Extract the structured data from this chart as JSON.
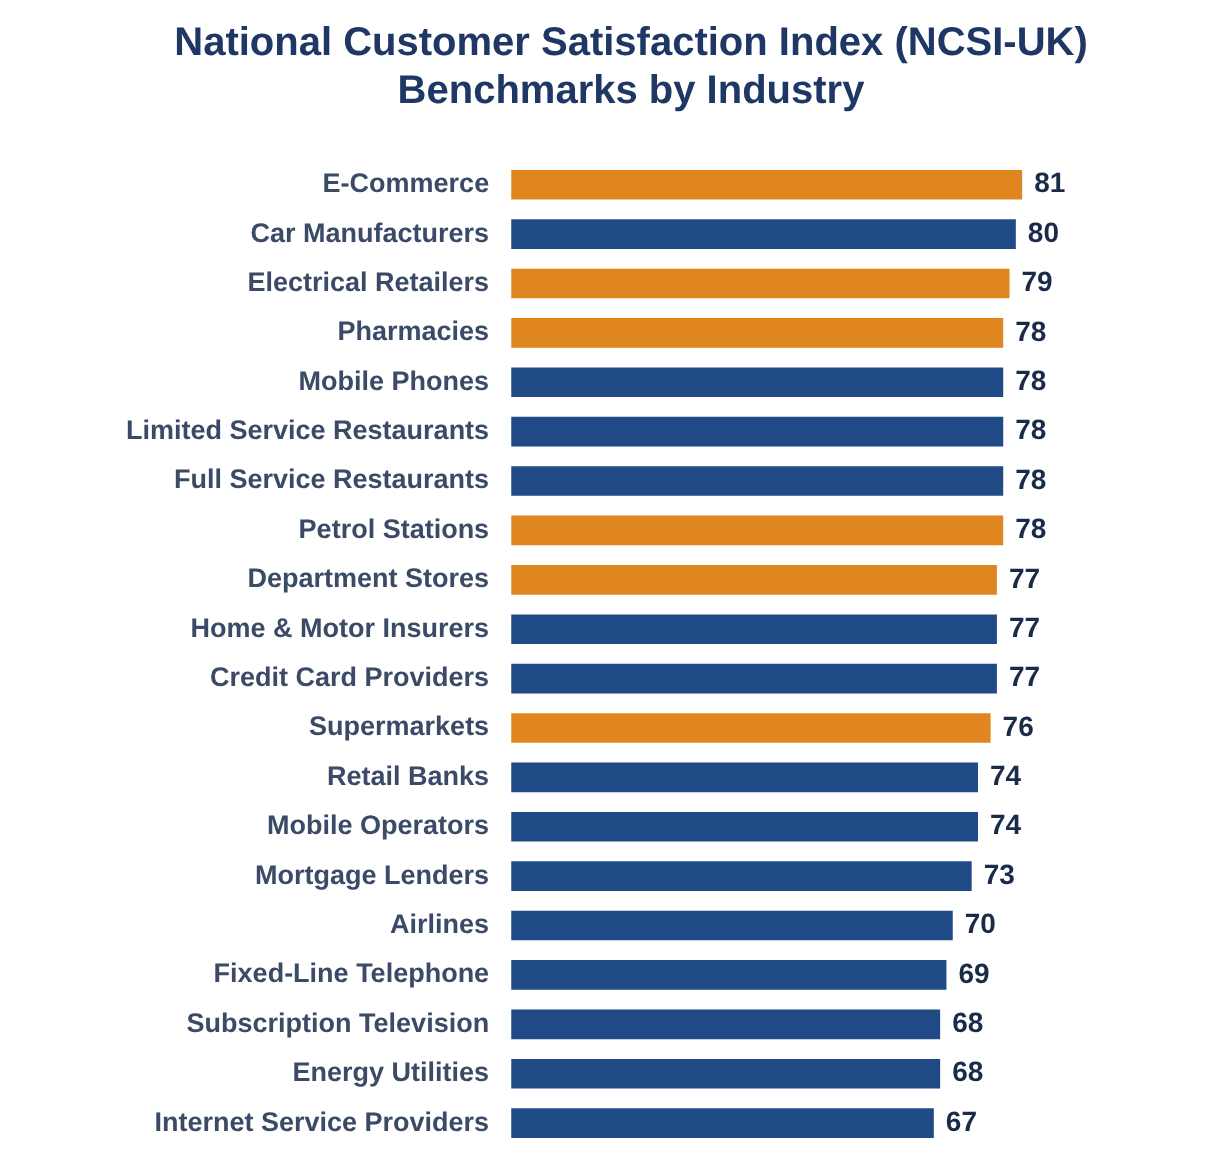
{
  "chart_data": {
    "type": "bar",
    "orientation": "horizontal",
    "title": "National Customer Satisfaction Index (NCSI-UK)\nBenchmarks by Industry",
    "categories": [
      "E-Commerce",
      "Car Manufacturers",
      "Electrical Retailers",
      "Pharmacies",
      "Mobile Phones",
      "Limited Service Restaurants",
      "Full Service Restaurants",
      "Petrol Stations",
      "Department Stores",
      "Home & Motor Insurers",
      "Credit Card Providers",
      "Supermarkets",
      "Retail Banks",
      "Mobile Operators",
      "Mortgage Lenders",
      "Airlines",
      "Fixed-Line Telephone",
      "Subscription Television",
      "Energy Utilities",
      "Internet Service Providers"
    ],
    "values": [
      81,
      80,
      79,
      78,
      78,
      78,
      78,
      78,
      77,
      77,
      77,
      76,
      74,
      74,
      73,
      70,
      69,
      68,
      68,
      67
    ],
    "colors": [
      "#e0861e",
      "#1f4a86",
      "#e0861e",
      "#e0861e",
      "#1f4a86",
      "#1f4a86",
      "#1f4a86",
      "#e0861e",
      "#e0861e",
      "#1f4a86",
      "#1f4a86",
      "#e0861e",
      "#1f4a86",
      "#1f4a86",
      "#1f4a86",
      "#1f4a86",
      "#1f4a86",
      "#1f4a86",
      "#1f4a86",
      "#1f4a86"
    ],
    "tick_labels": "y",
    "legend": false,
    "data_labels": true
  }
}
